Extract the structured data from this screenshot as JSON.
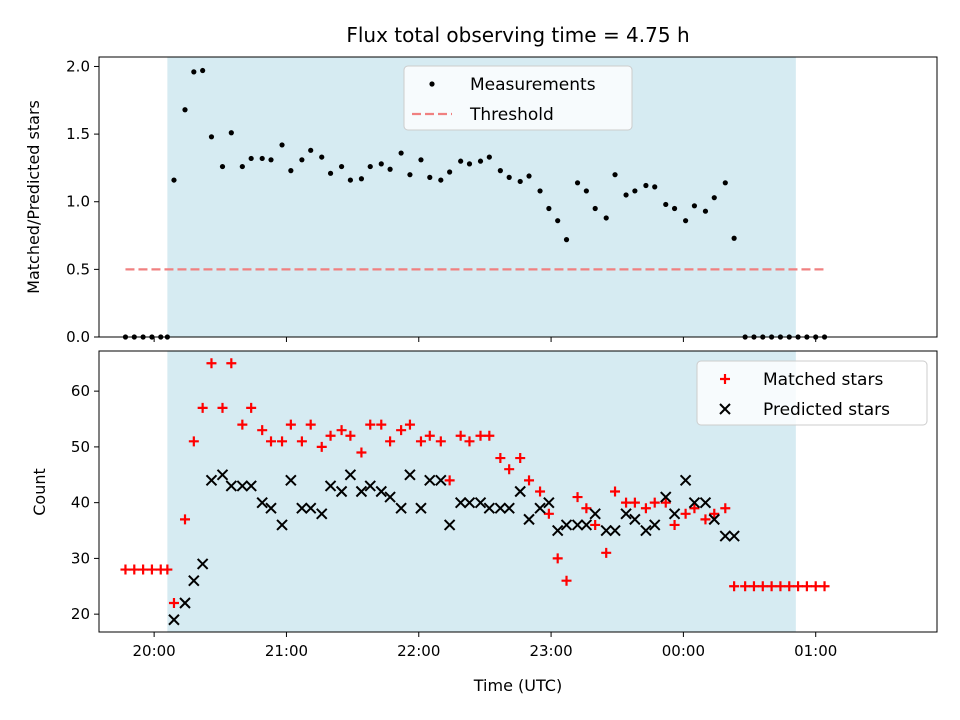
{
  "chart_data": [
    {
      "type": "scatter",
      "title": "Flux total observing time = 4.75 h",
      "xlabel": "",
      "ylabel": "Matched/Predicted stars",
      "xlim": [
        "19:35",
        "01:55"
      ],
      "ylim": [
        0,
        2.07
      ],
      "y_ticks": [
        "0.0",
        "0.5",
        "1.0",
        "1.5",
        "2.0"
      ],
      "x_ticks": [
        "20:00",
        "21:00",
        "22:00",
        "23:00",
        "00:00",
        "01:00"
      ],
      "observing_window": [
        "20:06",
        "00:51"
      ],
      "legend_position": "upper center",
      "series": [
        {
          "name": "Measurements",
          "kind": "points",
          "color": "#000000",
          "points": [
            [
              "19:47",
              0
            ],
            [
              "19:51",
              0
            ],
            [
              "19:55",
              0
            ],
            [
              "19:59",
              0
            ],
            [
              "20:03",
              0
            ],
            [
              "20:06",
              0
            ],
            [
              "20:09",
              1.16
            ],
            [
              "20:14",
              1.68
            ],
            [
              "20:18",
              1.96
            ],
            [
              "20:22",
              1.97
            ],
            [
              "20:26",
              1.48
            ],
            [
              "20:31",
              1.26
            ],
            [
              "20:35",
              1.51
            ],
            [
              "20:40",
              1.26
            ],
            [
              "20:44",
              1.32
            ],
            [
              "20:49",
              1.32
            ],
            [
              "20:53",
              1.31
            ],
            [
              "20:58",
              1.42
            ],
            [
              "21:02",
              1.23
            ],
            [
              "21:07",
              1.31
            ],
            [
              "21:11",
              1.38
            ],
            [
              "21:16",
              1.33
            ],
            [
              "21:20",
              1.21
            ],
            [
              "21:25",
              1.26
            ],
            [
              "21:29",
              1.16
            ],
            [
              "21:34",
              1.17
            ],
            [
              "21:38",
              1.26
            ],
            [
              "21:43",
              1.28
            ],
            [
              "21:47",
              1.24
            ],
            [
              "21:52",
              1.36
            ],
            [
              "21:56",
              1.2
            ],
            [
              "22:01",
              1.31
            ],
            [
              "22:05",
              1.18
            ],
            [
              "22:10",
              1.16
            ],
            [
              "22:14",
              1.22
            ],
            [
              "22:19",
              1.3
            ],
            [
              "22:23",
              1.28
            ],
            [
              "22:28",
              1.3
            ],
            [
              "22:32",
              1.33
            ],
            [
              "22:37",
              1.23
            ],
            [
              "22:41",
              1.18
            ],
            [
              "22:46",
              1.15
            ],
            [
              "22:50",
              1.19
            ],
            [
              "22:55",
              1.08
            ],
            [
              "22:59",
              0.95
            ],
            [
              "23:03",
              0.86
            ],
            [
              "23:07",
              0.72
            ],
            [
              "23:12",
              1.14
            ],
            [
              "23:16",
              1.08
            ],
            [
              "23:20",
              0.95
            ],
            [
              "23:25",
              0.88
            ],
            [
              "23:29",
              1.2
            ],
            [
              "23:34",
              1.05
            ],
            [
              "23:38",
              1.08
            ],
            [
              "23:43",
              1.12
            ],
            [
              "23:47",
              1.11
            ],
            [
              "23:52",
              0.98
            ],
            [
              "23:56",
              0.95
            ],
            [
              "00:01",
              0.86
            ],
            [
              "00:05",
              0.97
            ],
            [
              "00:10",
              0.93
            ],
            [
              "00:14",
              1.03
            ],
            [
              "00:19",
              1.14
            ],
            [
              "00:23",
              0.73
            ],
            [
              "00:28",
              0
            ],
            [
              "00:32",
              0
            ],
            [
              "00:36",
              0
            ],
            [
              "00:40",
              0
            ],
            [
              "00:44",
              0
            ],
            [
              "00:48",
              0
            ],
            [
              "00:52",
              0
            ],
            [
              "00:56",
              0
            ],
            [
              "01:00",
              0
            ],
            [
              "01:04",
              0
            ]
          ]
        },
        {
          "name": "Threshold",
          "kind": "dashed-line",
          "color": "#f08080",
          "y": 0.5,
          "x_range": [
            "19:47",
            "01:04"
          ]
        }
      ]
    },
    {
      "type": "scatter",
      "title": "",
      "xlabel": "Time (UTC)",
      "ylabel": "Count",
      "xlim": [
        "19:35",
        "01:55"
      ],
      "ylim": [
        16.8,
        67.2
      ],
      "y_ticks": [
        "20",
        "30",
        "40",
        "50",
        "60"
      ],
      "x_ticks": [
        "20:00",
        "21:00",
        "22:00",
        "23:00",
        "00:00",
        "01:00"
      ],
      "observing_window": [
        "20:06",
        "00:51"
      ],
      "legend_position": "upper right",
      "series": [
        {
          "name": "Matched stars",
          "marker": "plus",
          "color": "#ff0000",
          "points": [
            [
              "19:47",
              28
            ],
            [
              "19:51",
              28
            ],
            [
              "19:55",
              28
            ],
            [
              "19:59",
              28
            ],
            [
              "20:03",
              28
            ],
            [
              "20:06",
              28
            ],
            [
              "20:09",
              22
            ],
            [
              "20:14",
              37
            ],
            [
              "20:18",
              51
            ],
            [
              "20:22",
              57
            ],
            [
              "20:26",
              65
            ],
            [
              "20:31",
              57
            ],
            [
              "20:35",
              65
            ],
            [
              "20:40",
              54
            ],
            [
              "20:44",
              57
            ],
            [
              "20:49",
              53
            ],
            [
              "20:53",
              51
            ],
            [
              "20:58",
              51
            ],
            [
              "21:02",
              54
            ],
            [
              "21:07",
              51
            ],
            [
              "21:11",
              54
            ],
            [
              "21:16",
              50
            ],
            [
              "21:20",
              52
            ],
            [
              "21:25",
              53
            ],
            [
              "21:29",
              52
            ],
            [
              "21:34",
              49
            ],
            [
              "21:38",
              54
            ],
            [
              "21:43",
              54
            ],
            [
              "21:47",
              51
            ],
            [
              "21:52",
              53
            ],
            [
              "21:56",
              54
            ],
            [
              "22:01",
              51
            ],
            [
              "22:05",
              52
            ],
            [
              "22:10",
              51
            ],
            [
              "22:14",
              44
            ],
            [
              "22:19",
              52
            ],
            [
              "22:23",
              51
            ],
            [
              "22:28",
              52
            ],
            [
              "22:32",
              52
            ],
            [
              "22:37",
              48
            ],
            [
              "22:41",
              46
            ],
            [
              "22:46",
              48
            ],
            [
              "22:50",
              44
            ],
            [
              "22:55",
              42
            ],
            [
              "22:59",
              38
            ],
            [
              "23:03",
              30
            ],
            [
              "23:07",
              26
            ],
            [
              "23:12",
              41
            ],
            [
              "23:16",
              39
            ],
            [
              "23:20",
              36
            ],
            [
              "23:25",
              31
            ],
            [
              "23:29",
              42
            ],
            [
              "23:34",
              40
            ],
            [
              "23:38",
              40
            ],
            [
              "23:43",
              39
            ],
            [
              "23:47",
              40
            ],
            [
              "23:52",
              40
            ],
            [
              "23:56",
              36
            ],
            [
              "00:01",
              38
            ],
            [
              "00:05",
              39
            ],
            [
              "00:10",
              37
            ],
            [
              "00:14",
              38
            ],
            [
              "00:19",
              39
            ],
            [
              "00:23",
              25
            ],
            [
              "00:28",
              25
            ],
            [
              "00:32",
              25
            ],
            [
              "00:36",
              25
            ],
            [
              "00:40",
              25
            ],
            [
              "00:44",
              25
            ],
            [
              "00:48",
              25
            ],
            [
              "00:52",
              25
            ],
            [
              "00:56",
              25
            ],
            [
              "01:00",
              25
            ],
            [
              "01:04",
              25
            ]
          ]
        },
        {
          "name": "Predicted stars",
          "marker": "x",
          "color": "#000000",
          "points": [
            [
              "20:09",
              19
            ],
            [
              "20:14",
              22
            ],
            [
              "20:18",
              26
            ],
            [
              "20:22",
              29
            ],
            [
              "20:26",
              44
            ],
            [
              "20:31",
              45
            ],
            [
              "20:35",
              43
            ],
            [
              "20:40",
              43
            ],
            [
              "20:44",
              43
            ],
            [
              "20:49",
              40
            ],
            [
              "20:53",
              39
            ],
            [
              "20:58",
              36
            ],
            [
              "21:02",
              44
            ],
            [
              "21:07",
              39
            ],
            [
              "21:11",
              39
            ],
            [
              "21:16",
              38
            ],
            [
              "21:20",
              43
            ],
            [
              "21:25",
              42
            ],
            [
              "21:29",
              45
            ],
            [
              "21:34",
              42
            ],
            [
              "21:38",
              43
            ],
            [
              "21:43",
              42
            ],
            [
              "21:47",
              41
            ],
            [
              "21:52",
              39
            ],
            [
              "21:56",
              45
            ],
            [
              "22:01",
              39
            ],
            [
              "22:05",
              44
            ],
            [
              "22:10",
              44
            ],
            [
              "22:14",
              36
            ],
            [
              "22:19",
              40
            ],
            [
              "22:23",
              40
            ],
            [
              "22:28",
              40
            ],
            [
              "22:32",
              39
            ],
            [
              "22:37",
              39
            ],
            [
              "22:41",
              39
            ],
            [
              "22:46",
              42
            ],
            [
              "22:50",
              37
            ],
            [
              "22:55",
              39
            ],
            [
              "22:59",
              40
            ],
            [
              "23:03",
              35
            ],
            [
              "23:07",
              36
            ],
            [
              "23:12",
              36
            ],
            [
              "23:16",
              36
            ],
            [
              "23:20",
              38
            ],
            [
              "23:25",
              35
            ],
            [
              "23:29",
              35
            ],
            [
              "23:34",
              38
            ],
            [
              "23:38",
              37
            ],
            [
              "23:43",
              35
            ],
            [
              "23:47",
              36
            ],
            [
              "23:52",
              41
            ],
            [
              "23:56",
              38
            ],
            [
              "00:01",
              44
            ],
            [
              "00:05",
              40
            ],
            [
              "00:10",
              40
            ],
            [
              "00:14",
              37
            ],
            [
              "00:19",
              34
            ],
            [
              "00:23",
              34
            ]
          ]
        }
      ]
    }
  ],
  "colors": {
    "observing_window_fill": "#add8e6",
    "legend_border": "#cccccc"
  }
}
